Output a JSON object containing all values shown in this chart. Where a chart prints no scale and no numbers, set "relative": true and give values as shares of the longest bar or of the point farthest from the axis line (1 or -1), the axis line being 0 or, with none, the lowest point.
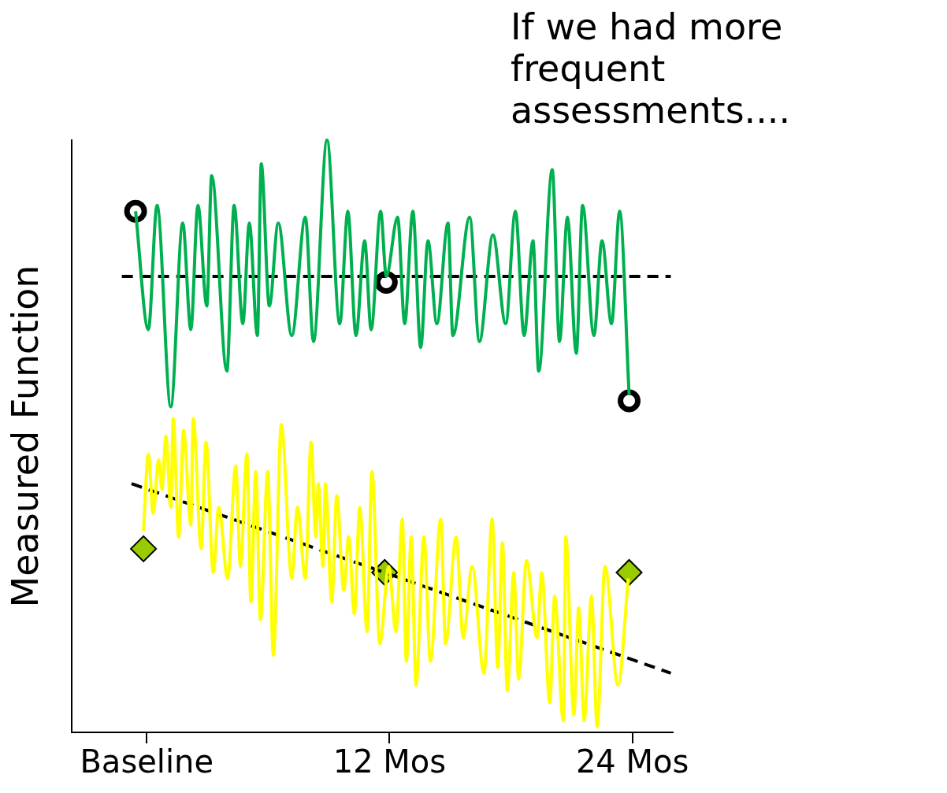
{
  "chart_data": {
    "type": "line",
    "title": "If we had more frequent assessments....",
    "ylabel": "Measured Function",
    "relative": true,
    "xlim": [
      -3.7,
      26
    ],
    "xticks": [
      {
        "value": 0,
        "label": "Baseline"
      },
      {
        "value": 12,
        "label": "12 Mos"
      },
      {
        "value": 24,
        "label": "24 Mos"
      }
    ],
    "series": [
      {
        "type": "line",
        "color": "#00b050",
        "marker": "none",
        "line_style": "solid",
        "x": [
          -0.55,
          0.08,
          0.51,
          1.19,
          1.78,
          2.18,
          2.53,
          2.97,
          3.21,
          3.96,
          4.32,
          4.75,
          5.07,
          5.47,
          5.66,
          6.06,
          6.5,
          7.17,
          7.84,
          8.24,
          8.91,
          9.54,
          9.94,
          10.34,
          10.77,
          11.09,
          11.56,
          11.84,
          12.4,
          12.75,
          13.15,
          13.54,
          13.9,
          14.34,
          14.89,
          15.13,
          15.96,
          16.44,
          17.11,
          17.74,
          18.22,
          18.65,
          19.09,
          19.37,
          20.04,
          20.4,
          20.79,
          21.23,
          21.54,
          22.1,
          22.5,
          22.97,
          23.37,
          23.84
        ],
        "values": [
          0.88,
          0.68,
          0.89,
          0.55,
          0.86,
          0.68,
          0.89,
          0.72,
          0.94,
          0.61,
          0.89,
          0.69,
          0.86,
          0.67,
          0.96,
          0.72,
          0.86,
          0.67,
          0.87,
          0.66,
          1.0,
          0.69,
          0.88,
          0.67,
          0.83,
          0.68,
          0.88,
          0.77,
          0.87,
          0.69,
          0.88,
          0.65,
          0.83,
          0.69,
          0.86,
          0.67,
          0.87,
          0.66,
          0.84,
          0.69,
          0.88,
          0.67,
          0.83,
          0.61,
          0.95,
          0.66,
          0.87,
          0.64,
          0.89,
          0.67,
          0.83,
          0.69,
          0.88,
          0.57
        ]
      },
      {
        "type": "line",
        "color": "#ffff00",
        "marker": "none",
        "line_style": "solid",
        "x": [
          -0.16,
          0.08,
          0.32,
          0.59,
          0.75,
          0.95,
          1.19,
          1.31,
          1.58,
          1.82,
          2.18,
          2.3,
          2.69,
          2.93,
          3.29,
          3.56,
          4.0,
          4.4,
          4.63,
          4.95,
          5.15,
          5.39,
          5.62,
          5.98,
          6.26,
          6.65,
          7.17,
          7.45,
          7.84,
          8.12,
          8.36,
          8.48,
          8.71,
          8.83,
          9.15,
          9.39,
          9.74,
          9.98,
          10.26,
          10.53,
          10.89,
          11.13,
          11.52,
          11.96,
          12.32,
          12.63,
          12.83,
          13.07,
          13.31,
          13.7,
          14.02,
          14.53,
          14.77,
          15.29,
          15.64,
          16.08,
          16.67,
          17.07,
          17.35,
          17.58,
          17.82,
          18.14,
          18.38,
          18.77,
          19.29,
          19.52,
          19.92,
          20.16,
          20.59,
          20.71,
          21.11,
          21.35,
          21.62,
          21.98,
          22.26,
          22.65,
          23.29,
          23.8
        ],
        "values": [
          0.34,
          0.47,
          0.37,
          0.46,
          0.41,
          0.5,
          0.38,
          0.53,
          0.33,
          0.51,
          0.35,
          0.53,
          0.31,
          0.49,
          0.27,
          0.38,
          0.26,
          0.45,
          0.28,
          0.47,
          0.22,
          0.44,
          0.19,
          0.44,
          0.13,
          0.52,
          0.26,
          0.38,
          0.26,
          0.49,
          0.33,
          0.42,
          0.28,
          0.42,
          0.22,
          0.4,
          0.24,
          0.33,
          0.2,
          0.38,
          0.17,
          0.44,
          0.15,
          0.28,
          0.17,
          0.36,
          0.12,
          0.33,
          0.08,
          0.33,
          0.12,
          0.36,
          0.15,
          0.33,
          0.16,
          0.28,
          0.1,
          0.36,
          0.11,
          0.32,
          0.07,
          0.27,
          0.09,
          0.29,
          0.16,
          0.27,
          0.05,
          0.23,
          0.02,
          0.33,
          0.03,
          0.21,
          0.02,
          0.23,
          0.01,
          0.28,
          0.08,
          0.26
        ]
      },
      {
        "type": "line",
        "color": "#000000",
        "marker": "none",
        "line_style": "dashed",
        "x": [
          -1.23,
          25.9
        ],
        "values": [
          0.77,
          0.77
        ]
      },
      {
        "type": "line",
        "color": "#000000",
        "marker": "none",
        "line_style": "dashed",
        "x": [
          -0.75,
          25.9
        ],
        "values": [
          0.42,
          0.1
        ]
      },
      {
        "type": "scatter",
        "color": "#000000",
        "marker": "circle",
        "x": [
          -0.55,
          11.84,
          23.84
        ],
        "values": [
          0.88,
          0.76,
          0.56
        ]
      },
      {
        "type": "scatter",
        "color": "#99cc00",
        "marker": "diamond",
        "x": [
          -0.16,
          11.76,
          23.84
        ],
        "values": [
          0.31,
          0.27,
          0.27
        ]
      }
    ]
  }
}
